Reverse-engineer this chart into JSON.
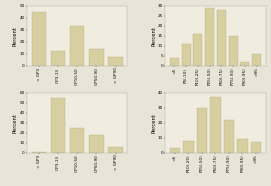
{
  "bar_color": "#d8cfa0",
  "edge_color": "#b0a878",
  "background_color": "#f0ede0",
  "fig_bg": "#e8e4d8",
  "subplots": [
    {
      "categories": [
        "< GP3",
        "GP3-13",
        "GP10-50",
        "GP50-90",
        "> GP90"
      ],
      "values": [
        45,
        12,
        33,
        14,
        7
      ],
      "ylim": [
        0,
        50
      ],
      "yticks": [
        0,
        10,
        20,
        30,
        40,
        50
      ]
    },
    {
      "categories": [
        "<5",
        "P5(-10)",
        "P10(-25)",
        "P25(-50)",
        "P50(-75)",
        "P75(-90)",
        "P90(-95)",
        ">95"
      ],
      "values": [
        4,
        11,
        16,
        29,
        28,
        15,
        2,
        6
      ],
      "ylim": [
        0,
        30
      ],
      "yticks": [
        0,
        5,
        10,
        15,
        20,
        25,
        30
      ]
    },
    {
      "categories": [
        "< GP3",
        "GP3-13",
        "GP10-50",
        "GP50-90",
        "> GP90"
      ],
      "values": [
        1,
        55,
        25,
        18,
        6
      ],
      "ylim": [
        0,
        60
      ],
      "yticks": [
        0,
        10,
        20,
        30,
        40,
        50,
        60
      ]
    },
    {
      "categories": [
        "<5",
        "P10(-25)",
        "P25(-50)",
        "P50(-75)",
        "P75(-90)",
        "P90(-95)",
        ">95"
      ],
      "values": [
        3,
        8,
        30,
        37,
        22,
        9,
        7
      ],
      "ylim": [
        0,
        40
      ],
      "yticks": [
        0,
        10,
        20,
        30,
        40
      ]
    }
  ],
  "ylabel": "Percent",
  "tick_labelsize": 3.0,
  "axis_labelsize": 3.8
}
